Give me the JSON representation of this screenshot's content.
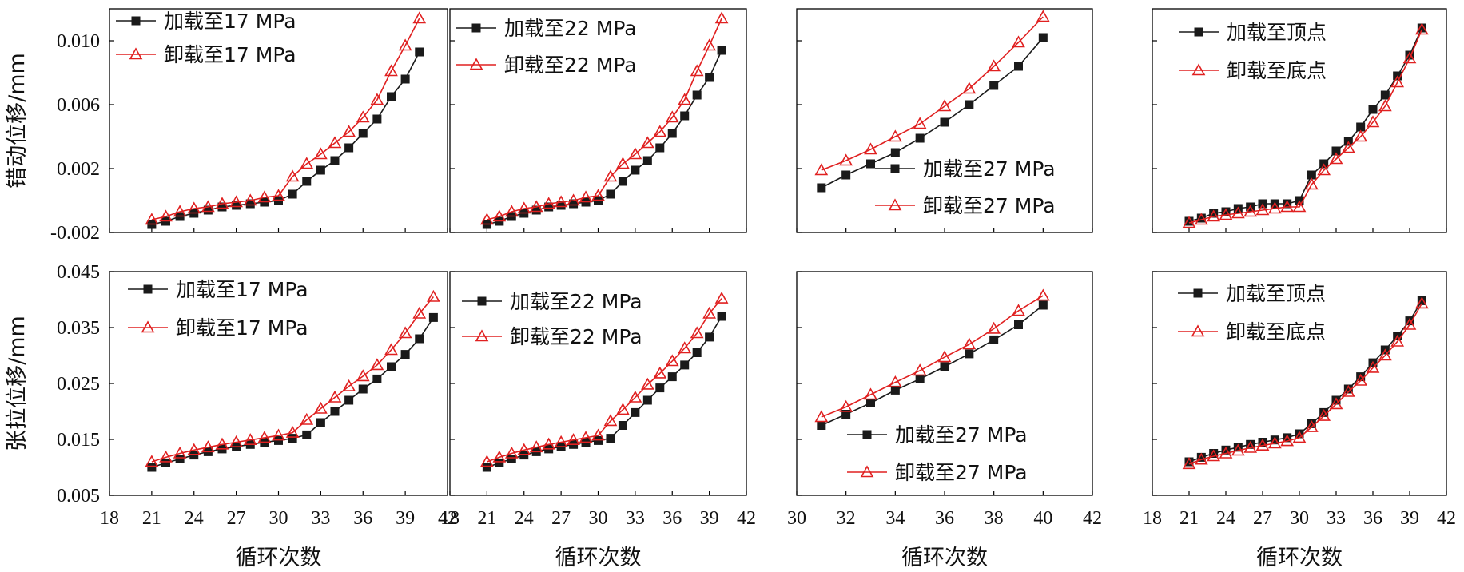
{
  "chart_data": [
    {
      "id": "p11",
      "type": "line",
      "ylabel": "错动位移/mm",
      "xlabel": "",
      "xlim": [
        18,
        42
      ],
      "ylim": [
        -0.002,
        0.012
      ],
      "xticks": [],
      "yticks": [
        "0.010",
        "0.006",
        "0.002",
        "-0.002"
      ],
      "legend_position": "top-left",
      "series": [
        {
          "name": "加载至17 MPa",
          "color": "#1a1a1a",
          "marker": "square",
          "x": [
            21,
            22,
            23,
            24,
            25,
            26,
            27,
            28,
            29,
            30,
            31,
            32,
            33,
            34,
            35,
            36,
            37,
            38,
            39,
            40
          ],
          "y": [
            -0.0015,
            -0.0013,
            -0.001,
            -0.0008,
            -0.0006,
            -0.0004,
            -0.0003,
            -0.0002,
            -0.0001,
            0.0,
            0.0004,
            0.0012,
            0.0019,
            0.0025,
            0.0033,
            0.0042,
            0.0051,
            0.0065,
            0.0076,
            0.0093
          ]
        },
        {
          "name": "卸载至17 MPa",
          "color": "#e02020",
          "marker": "triangle",
          "x": [
            21,
            22,
            23,
            24,
            25,
            26,
            27,
            28,
            29,
            30,
            31,
            32,
            33,
            34,
            35,
            36,
            37,
            38,
            39,
            40
          ],
          "y": [
            -0.0012,
            -0.001,
            -0.0007,
            -0.0005,
            -0.0004,
            -0.0002,
            -0.0001,
            0.0,
            0.0002,
            0.0003,
            0.0015,
            0.0023,
            0.0029,
            0.0036,
            0.0043,
            0.0052,
            0.0063,
            0.0081,
            0.0097,
            0.0114
          ]
        }
      ]
    },
    {
      "id": "p12",
      "type": "line",
      "ylabel": "",
      "xlabel": "",
      "xlim": [
        18,
        42
      ],
      "ylim": [
        -0.002,
        0.012
      ],
      "xticks": [],
      "yticks": [],
      "legend_position": "top-left",
      "series": [
        {
          "name": "加载至22 MPa",
          "color": "#1a1a1a",
          "marker": "square",
          "x": [
            21,
            22,
            23,
            24,
            25,
            26,
            27,
            28,
            29,
            30,
            31,
            32,
            33,
            34,
            35,
            36,
            37,
            38,
            39,
            40
          ],
          "y": [
            -0.0015,
            -0.0013,
            -0.001,
            -0.0008,
            -0.0006,
            -0.0004,
            -0.0003,
            -0.0002,
            -0.0001,
            0.0,
            0.0004,
            0.0012,
            0.0019,
            0.0025,
            0.0033,
            0.0042,
            0.0053,
            0.0066,
            0.0077,
            0.0094
          ]
        },
        {
          "name": "卸载至22 MPa",
          "color": "#e02020",
          "marker": "triangle",
          "x": [
            21,
            22,
            23,
            24,
            25,
            26,
            27,
            28,
            29,
            30,
            31,
            32,
            33,
            34,
            35,
            36,
            37,
            38,
            39,
            40
          ],
          "y": [
            -0.0012,
            -0.001,
            -0.0007,
            -0.0005,
            -0.0004,
            -0.0002,
            -0.0001,
            0.0,
            0.0002,
            0.0003,
            0.0015,
            0.0023,
            0.0029,
            0.0036,
            0.0043,
            0.0052,
            0.0063,
            0.0081,
            0.0097,
            0.0114
          ]
        }
      ]
    },
    {
      "id": "p13",
      "type": "line",
      "ylabel": "",
      "xlabel": "",
      "xlim": [
        30,
        42
      ],
      "ylim": [
        -0.002,
        0.012
      ],
      "xticks": [],
      "yticks": [],
      "legend_position": "center-right",
      "series": [
        {
          "name": "加载至27 MPa",
          "color": "#1a1a1a",
          "marker": "square",
          "x": [
            31,
            32,
            33,
            34,
            35,
            36,
            37,
            38,
            39,
            40
          ],
          "y": [
            0.0008,
            0.0016,
            0.0023,
            0.003,
            0.0039,
            0.0049,
            0.006,
            0.0072,
            0.0084,
            0.0102
          ]
        },
        {
          "name": "卸载至27 MPa",
          "color": "#e02020",
          "marker": "triangle",
          "x": [
            31,
            32,
            33,
            34,
            35,
            36,
            37,
            38,
            39,
            40
          ],
          "y": [
            0.0019,
            0.0025,
            0.0032,
            0.004,
            0.0048,
            0.0059,
            0.007,
            0.0084,
            0.0099,
            0.0115
          ]
        }
      ]
    },
    {
      "id": "p14",
      "type": "line",
      "ylabel": "",
      "xlabel": "",
      "xlim": [
        18,
        42
      ],
      "ylim": [
        -0.002,
        0.012
      ],
      "xticks": [],
      "yticks": [],
      "legend_position": "top-left",
      "series": [
        {
          "name": "加载至顶点",
          "color": "#1a1a1a",
          "marker": "square",
          "x": [
            21,
            22,
            23,
            24,
            25,
            26,
            27,
            28,
            29,
            30,
            31,
            32,
            33,
            34,
            35,
            36,
            37,
            38,
            39,
            40
          ],
          "y": [
            -0.0013,
            -0.0011,
            -0.0008,
            -0.0007,
            -0.0005,
            -0.0004,
            -0.0002,
            -0.0002,
            -0.0002,
            0.0,
            0.0016,
            0.0023,
            0.0031,
            0.0037,
            0.0046,
            0.0057,
            0.0066,
            0.0078,
            0.0091,
            0.0108
          ]
        },
        {
          "name": "卸载至底点",
          "color": "#e02020",
          "marker": "triangle",
          "x": [
            21,
            22,
            23,
            24,
            25,
            26,
            27,
            28,
            29,
            30,
            31,
            32,
            33,
            34,
            35,
            36,
            37,
            38,
            39,
            40
          ],
          "y": [
            -0.0014,
            -0.0012,
            -0.001,
            -0.0009,
            -0.0008,
            -0.0007,
            -0.0006,
            -0.0005,
            -0.0004,
            -0.0004,
            0.001,
            0.0019,
            0.0026,
            0.0033,
            0.004,
            0.0049,
            0.0059,
            0.0074,
            0.0089,
            0.0107
          ]
        }
      ]
    },
    {
      "id": "p21",
      "type": "line",
      "ylabel": "张拉位移/mm",
      "xlabel": "循环次数",
      "xlim": [
        18,
        42
      ],
      "ylim": [
        0.005,
        0.045
      ],
      "xticks": [
        "18",
        "21",
        "24",
        "27",
        "30",
        "33",
        "36",
        "39",
        "42"
      ],
      "yticks": [
        "0.045",
        "0.035",
        "0.025",
        "0.015",
        "0.005"
      ],
      "legend_position": "top-left",
      "series": [
        {
          "name": "加载至17 MPa",
          "color": "#1a1a1a",
          "marker": "square",
          "x": [
            21,
            22,
            23,
            24,
            25,
            26,
            27,
            28,
            29,
            30,
            31,
            32,
            33,
            34,
            35,
            36,
            37,
            38,
            39,
            40,
            41
          ],
          "y": [
            0.01,
            0.0108,
            0.0115,
            0.0122,
            0.0128,
            0.0133,
            0.0137,
            0.0141,
            0.0145,
            0.0148,
            0.0152,
            0.0158,
            0.018,
            0.02,
            0.022,
            0.024,
            0.0258,
            0.028,
            0.0302,
            0.033,
            0.0368
          ]
        },
        {
          "name": "卸载至17 MPa",
          "color": "#e02020",
          "marker": "triangle",
          "x": [
            21,
            22,
            23,
            24,
            25,
            26,
            27,
            28,
            29,
            30,
            31,
            32,
            33,
            34,
            35,
            36,
            37,
            38,
            39,
            40,
            41
          ],
          "y": [
            0.011,
            0.0118,
            0.0125,
            0.0131,
            0.0136,
            0.0141,
            0.0145,
            0.0149,
            0.0153,
            0.0157,
            0.0162,
            0.0185,
            0.0205,
            0.0225,
            0.0245,
            0.0263,
            0.0283,
            0.031,
            0.034,
            0.0375,
            0.0405
          ]
        }
      ]
    },
    {
      "id": "p22",
      "type": "line",
      "ylabel": "",
      "xlabel": "循环次数",
      "xlim": [
        18,
        42
      ],
      "ylim": [
        0.005,
        0.045
      ],
      "xticks": [
        "18",
        "21",
        "24",
        "27",
        "30",
        "33",
        "36",
        "39",
        "42"
      ],
      "yticks": [],
      "legend_position": "top-left",
      "series": [
        {
          "name": "加载至22 MPa",
          "color": "#1a1a1a",
          "marker": "square",
          "x": [
            21,
            22,
            23,
            24,
            25,
            26,
            27,
            28,
            29,
            30,
            31,
            32,
            33,
            34,
            35,
            36,
            37,
            38,
            39,
            40
          ],
          "y": [
            0.01,
            0.0108,
            0.0115,
            0.0122,
            0.0128,
            0.0133,
            0.0137,
            0.0141,
            0.0145,
            0.0148,
            0.0152,
            0.0175,
            0.0198,
            0.022,
            0.0242,
            0.0262,
            0.0283,
            0.0305,
            0.0333,
            0.037
          ]
        },
        {
          "name": "卸载至22 MPa",
          "color": "#e02020",
          "marker": "triangle",
          "x": [
            21,
            22,
            23,
            24,
            25,
            26,
            27,
            28,
            29,
            30,
            31,
            32,
            33,
            34,
            35,
            36,
            37,
            38,
            39,
            40
          ],
          "y": [
            0.011,
            0.0118,
            0.0125,
            0.0131,
            0.0136,
            0.0141,
            0.0145,
            0.0149,
            0.0153,
            0.0157,
            0.0183,
            0.0203,
            0.0225,
            0.0248,
            0.0268,
            0.029,
            0.0313,
            0.034,
            0.0375,
            0.0402
          ]
        }
      ]
    },
    {
      "id": "p23",
      "type": "line",
      "ylabel": "",
      "xlabel": "循环次数",
      "xlim": [
        30,
        42
      ],
      "ylim": [
        0.005,
        0.045
      ],
      "xticks": [
        "30",
        "32",
        "34",
        "36",
        "38",
        "40",
        "42"
      ],
      "yticks": [],
      "legend_position": "bottom-right",
      "series": [
        {
          "name": "加载至27 MPa",
          "color": "#1a1a1a",
          "marker": "square",
          "x": [
            31,
            32,
            33,
            34,
            35,
            36,
            37,
            38,
            39,
            40
          ],
          "y": [
            0.0175,
            0.0195,
            0.0215,
            0.0238,
            0.0258,
            0.028,
            0.0303,
            0.0328,
            0.0355,
            0.039
          ]
        },
        {
          "name": "卸载至27 MPa",
          "color": "#e02020",
          "marker": "triangle",
          "x": [
            31,
            32,
            33,
            34,
            35,
            36,
            37,
            38,
            39,
            40
          ],
          "y": [
            0.019,
            0.0208,
            0.023,
            0.0252,
            0.0273,
            0.0297,
            0.032,
            0.0348,
            0.038,
            0.0407
          ]
        }
      ]
    },
    {
      "id": "p24",
      "type": "line",
      "ylabel": "",
      "xlabel": "循环次数",
      "xlim": [
        18,
        42
      ],
      "ylim": [
        0.005,
        0.045
      ],
      "xticks": [
        "18",
        "21",
        "24",
        "27",
        "30",
        "33",
        "36",
        "39",
        "42"
      ],
      "yticks": [],
      "legend_position": "top-left",
      "series": [
        {
          "name": "加载至顶点",
          "color": "#1a1a1a",
          "marker": "square",
          "x": [
            21,
            22,
            23,
            24,
            25,
            26,
            27,
            28,
            29,
            30,
            31,
            32,
            33,
            34,
            35,
            36,
            37,
            38,
            39,
            40
          ],
          "y": [
            0.011,
            0.0118,
            0.0125,
            0.0131,
            0.0136,
            0.0141,
            0.0145,
            0.0149,
            0.0153,
            0.016,
            0.0178,
            0.0198,
            0.022,
            0.024,
            0.0262,
            0.0287,
            0.031,
            0.0335,
            0.0362,
            0.0398
          ]
        },
        {
          "name": "卸载至底点",
          "color": "#e02020",
          "marker": "triangle",
          "x": [
            21,
            22,
            23,
            24,
            25,
            26,
            27,
            28,
            29,
            30,
            31,
            32,
            33,
            34,
            35,
            36,
            37,
            38,
            39,
            40
          ],
          "y": [
            0.0106,
            0.0114,
            0.012,
            0.0125,
            0.013,
            0.0135,
            0.0139,
            0.0143,
            0.0147,
            0.0153,
            0.0172,
            0.0192,
            0.0213,
            0.0235,
            0.0255,
            0.0278,
            0.03,
            0.0325,
            0.0355,
            0.0393
          ]
        }
      ]
    }
  ]
}
